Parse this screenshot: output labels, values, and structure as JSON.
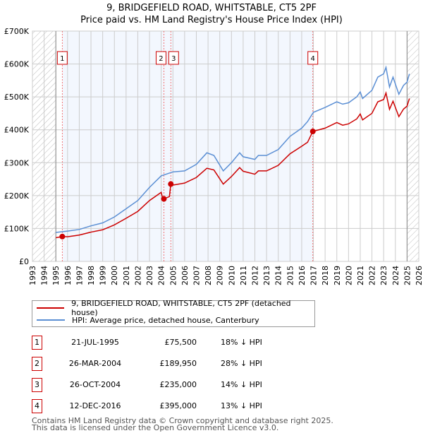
{
  "chart_data": {
    "type": "line",
    "title": "9, BRIDGEFIELD ROAD, WHITSTABLE, CT5 2PF",
    "subtitle": "Price paid vs. HM Land Registry's House Price Index (HPI)",
    "xlim": [
      1993,
      2026
    ],
    "ylim": [
      0,
      700000
    ],
    "y_ticks": [
      {
        "v": 0,
        "label": "£0"
      },
      {
        "v": 100000,
        "label": "£100K"
      },
      {
        "v": 200000,
        "label": "£200K"
      },
      {
        "v": 300000,
        "label": "£300K"
      },
      {
        "v": 400000,
        "label": "£400K"
      },
      {
        "v": 500000,
        "label": "£500K"
      },
      {
        "v": 600000,
        "label": "£600K"
      },
      {
        "v": 700000,
        "label": "£700K"
      }
    ],
    "x_ticks": [
      "1993",
      "1994",
      "1995",
      "1996",
      "1997",
      "1998",
      "1999",
      "2000",
      "2001",
      "2002",
      "2003",
      "2004",
      "2005",
      "2006",
      "2007",
      "2008",
      "2009",
      "2010",
      "2011",
      "2012",
      "2013",
      "2014",
      "2015",
      "2016",
      "2017",
      "2018",
      "2019",
      "2020",
      "2021",
      "2022",
      "2023",
      "2024",
      "2025",
      "2026"
    ],
    "grid": true,
    "series": [
      {
        "name": "9, BRIDGEFIELD ROAD, WHITSTABLE, CT5 2PF (detached house)",
        "color": "#cc0000",
        "x": [
          1995.0,
          1995.55,
          1996,
          1997,
          1998,
          1999,
          2000,
          2001,
          2002,
          2003,
          2004.0,
          2004.1,
          2004.23,
          2004.7,
          2004.82,
          2005,
          2006,
          2007,
          2007.9,
          2008.5,
          2009.3,
          2010,
          2010.7,
          2011,
          2012,
          2012.3,
          2013,
          2014,
          2015,
          2016,
          2016.5,
          2016.95,
          2018,
          2019,
          2019.5,
          2020,
          2020.7,
          2021,
          2021.2,
          2022,
          2022.5,
          2023,
          2023.2,
          2023.5,
          2023.8,
          2024.3,
          2024.7,
          2025.0,
          2025.2
        ],
        "y": [
          72000,
          75500,
          75000,
          80000,
          89000,
          96000,
          111000,
          131000,
          152000,
          185000,
          210000,
          195000,
          189950,
          197000,
          235000,
          232000,
          238000,
          255000,
          283000,
          278000,
          235000,
          258000,
          285000,
          274000,
          265000,
          275000,
          275000,
          292000,
          327000,
          350000,
          362000,
          395000,
          405000,
          422000,
          414000,
          418000,
          433000,
          448000,
          430000,
          450000,
          485000,
          492000,
          512000,
          462000,
          487000,
          440000,
          463000,
          472000,
          495000
        ]
      },
      {
        "name": "HPI: Average price, detached house, Canterbury",
        "color": "#5b8fd4",
        "x": [
          1995.0,
          1996,
          1997,
          1998,
          1999,
          2000,
          2001,
          2002,
          2003,
          2004,
          2005,
          2006,
          2007,
          2007.9,
          2008.5,
          2009.3,
          2010,
          2010.7,
          2011,
          2012,
          2012.3,
          2013,
          2014,
          2015,
          2016,
          2016.5,
          2017,
          2018,
          2019,
          2019.5,
          2020,
          2020.7,
          2021,
          2021.2,
          2022,
          2022.5,
          2023,
          2023.2,
          2023.5,
          2023.8,
          2024.3,
          2024.7,
          2025.0,
          2025.2
        ],
        "y": [
          88000,
          92000,
          97000,
          108000,
          117000,
          135000,
          160000,
          185000,
          225000,
          260000,
          272000,
          275000,
          295000,
          330000,
          322000,
          275000,
          300000,
          330000,
          318000,
          310000,
          322000,
          322000,
          340000,
          380000,
          405000,
          425000,
          453000,
          468000,
          485000,
          478000,
          482000,
          500000,
          515000,
          495000,
          520000,
          560000,
          570000,
          590000,
          530000,
          560000,
          508000,
          535000,
          545000,
          570000
        ]
      }
    ],
    "sales": [
      {
        "n": "1",
        "x": 1995.55,
        "y": 75500,
        "date": "21-JUL-1995",
        "price": "£75,500",
        "hpi": "18% ↓ HPI"
      },
      {
        "n": "2",
        "x": 2004.23,
        "y": 189950,
        "date": "26-MAR-2004",
        "price": "£189,950",
        "hpi": "28% ↓ HPI"
      },
      {
        "n": "3",
        "x": 2004.82,
        "y": 235000,
        "date": "26-OCT-2004",
        "price": "£235,000",
        "hpi": "14% ↓ HPI"
      },
      {
        "n": "4",
        "x": 2016.95,
        "y": 395000,
        "date": "12-DEC-2016",
        "price": "£395,000",
        "hpi": "13% ↓ HPI"
      }
    ],
    "footer": [
      "Contains HM Land Registry data © Crown copyright and database right 2025.",
      "This data is licensed under the Open Government Licence v3.0."
    ]
  }
}
